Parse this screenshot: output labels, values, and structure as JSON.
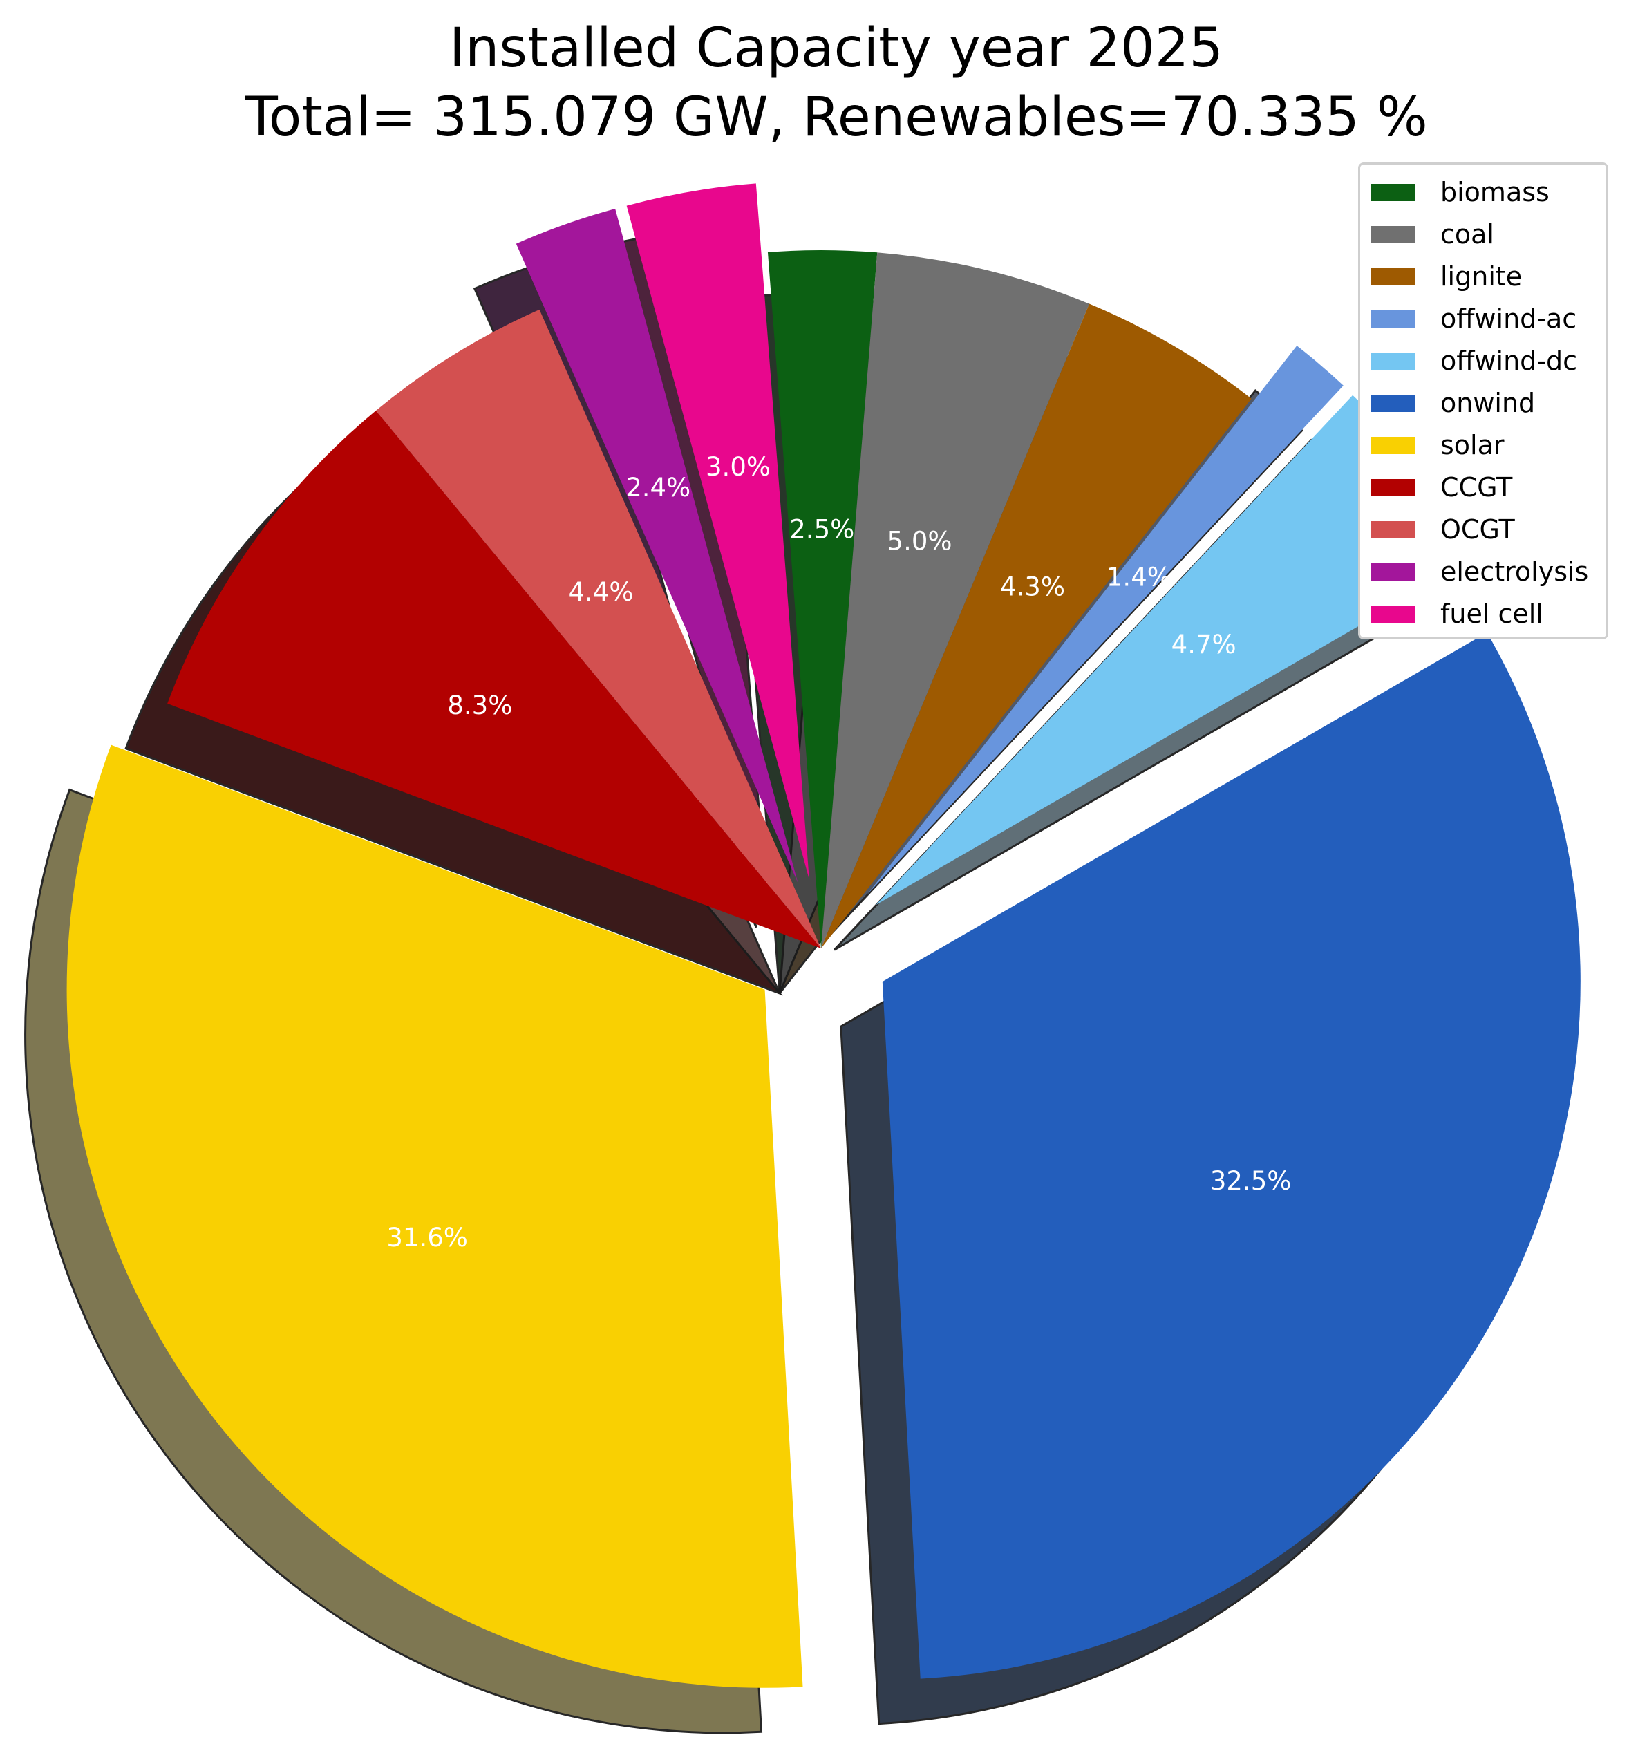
{
  "chart_data": {
    "type": "pie",
    "title_lines": [
      "Installed Capacity year 2025",
      "Total= 315.079 GW, Renewables=70.335 %"
    ],
    "slices": [
      {
        "label": "onwind",
        "value": 32.5,
        "pct_label": "32.5%",
        "color": "#235ebc",
        "exploded": true
      },
      {
        "label": "solar",
        "value": 31.6,
        "pct_label": "31.6%",
        "color": "#f9d002",
        "exploded": true
      },
      {
        "label": "CCGT",
        "value": 8.3,
        "pct_label": "8.3%",
        "color": "#b20101",
        "exploded": false
      },
      {
        "label": "OCGT",
        "value": 4.4,
        "pct_label": "4.4%",
        "color": "#d35050",
        "exploded": false
      },
      {
        "label": "electrolysis",
        "value": 2.4,
        "pct_label": "2.4%",
        "color": "#a3169b",
        "exploded": true
      },
      {
        "label": "fuel cell",
        "value": 3.0,
        "pct_label": "3.0%",
        "color": "#e8078d",
        "exploded": true
      },
      {
        "label": "biomass",
        "value": 2.5,
        "pct_label": "2.5%",
        "color": "#0c6013",
        "exploded": false
      },
      {
        "label": "coal",
        "value": 5.0,
        "pct_label": "5.0%",
        "color": "#707070",
        "exploded": false
      },
      {
        "label": "lignite",
        "value": 4.3,
        "pct_label": "4.3%",
        "color": "#9e5a01",
        "exploded": false
      },
      {
        "label": "offwind-ac",
        "value": 1.4,
        "pct_label": "1.4%",
        "color": "#6895dd",
        "exploded": true
      },
      {
        "label": "offwind-dc",
        "value": 4.7,
        "pct_label": "4.7%",
        "color": "#74c6f2",
        "exploded": true
      }
    ],
    "legend": {
      "placement": "top-right",
      "entries": [
        {
          "label": "biomass",
          "color": "#0c6013"
        },
        {
          "label": "coal",
          "color": "#707070"
        },
        {
          "label": "lignite",
          "color": "#9e5a01"
        },
        {
          "label": "offwind-ac",
          "color": "#6895dd"
        },
        {
          "label": "offwind-dc",
          "color": "#74c6f2"
        },
        {
          "label": "onwind",
          "color": "#235ebc"
        },
        {
          "label": "solar",
          "color": "#f9d002"
        },
        {
          "label": "CCGT",
          "color": "#b20101"
        },
        {
          "label": "OCGT",
          "color": "#d35050"
        },
        {
          "label": "electrolysis",
          "color": "#a3169b"
        },
        {
          "label": "fuel cell",
          "color": "#e8078d"
        }
      ]
    },
    "shadow": true
  }
}
